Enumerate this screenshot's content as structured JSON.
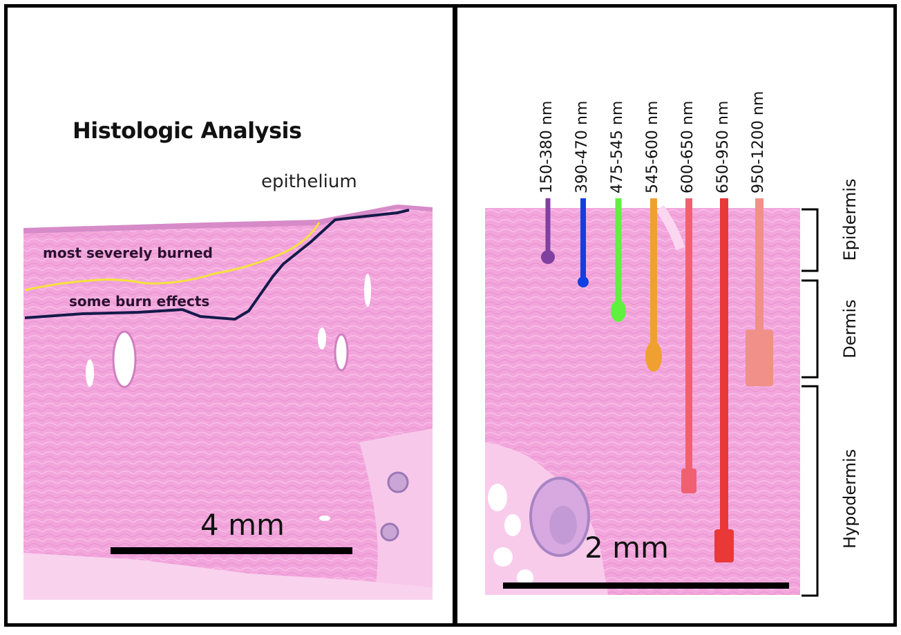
{
  "left": {
    "title": "Histologic Analysis",
    "epithelium_label": "epithelium",
    "severe_label": "most severely burned",
    "some_label": "some burn effects",
    "scale_label": "4 mm"
  },
  "right": {
    "wavelengths": [
      {
        "label": "150-380 nm",
        "color": "#8040a0"
      },
      {
        "label": "390-470 nm",
        "color": "#1040e0"
      },
      {
        "label": "475-545 nm",
        "color": "#60f040"
      },
      {
        "label": "545-600 nm",
        "color": "#f0a030"
      },
      {
        "label": "600-650 nm",
        "color": "#f06070"
      },
      {
        "label": "650-950 nm",
        "color": "#e83838"
      },
      {
        "label": "950-1200 nm",
        "color": "#f09088"
      }
    ],
    "layers": [
      "Epidermis",
      "Dermis",
      "Hypodermis"
    ],
    "scale_label": "2 mm"
  },
  "colors": {
    "tissue": "#f2a6dc",
    "yellow_line": "#f5e23a",
    "navy_line": "#141a4a"
  }
}
